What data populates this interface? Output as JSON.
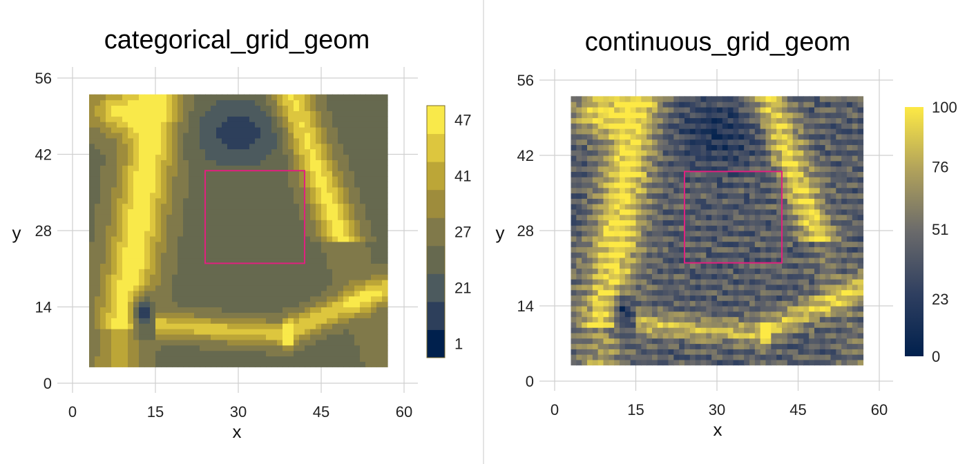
{
  "chart_data": [
    {
      "type": "heatmap",
      "title": "categorical_grid_geom",
      "xlabel": "x",
      "ylabel": "y",
      "xlim": [
        0,
        60
      ],
      "ylim": [
        0,
        56
      ],
      "xticks": [
        0,
        15,
        30,
        45,
        60
      ],
      "yticks": [
        0,
        14,
        28,
        42,
        56
      ],
      "grid": true,
      "scale": "categorical",
      "legend": {
        "placement": "right",
        "labels": [
          "1",
          "21",
          "27",
          "41",
          "47"
        ],
        "colors": [
          "#00204d",
          "#2d3f5b",
          "#4c5a5e",
          "#66694f",
          "#80794a",
          "#9e8c3c",
          "#bca637",
          "#ddc63e",
          "#f9e94a"
        ]
      },
      "highlight_box": {
        "x": [
          24,
          42
        ],
        "y": [
          22,
          39
        ],
        "color": "#e0207e"
      }
    },
    {
      "type": "heatmap",
      "title": "continuous_grid_geom",
      "xlabel": "x",
      "ylabel": "y",
      "xlim": [
        0,
        60
      ],
      "ylim": [
        0,
        56
      ],
      "xticks": [
        0,
        15,
        30,
        45,
        60
      ],
      "yticks": [
        0,
        14,
        28,
        42,
        56
      ],
      "grid": true,
      "scale": "continuous",
      "legend": {
        "placement": "right",
        "labels": [
          "0",
          "23",
          "51",
          "76",
          "100"
        ],
        "colors": [
          "#00204d",
          "#2f3f60",
          "#6a6a6b",
          "#b1a25b",
          "#fde945"
        ]
      },
      "highlight_box": {
        "x": [
          24,
          42
        ],
        "y": [
          22,
          39
        ],
        "color": "#e0207e"
      }
    }
  ]
}
